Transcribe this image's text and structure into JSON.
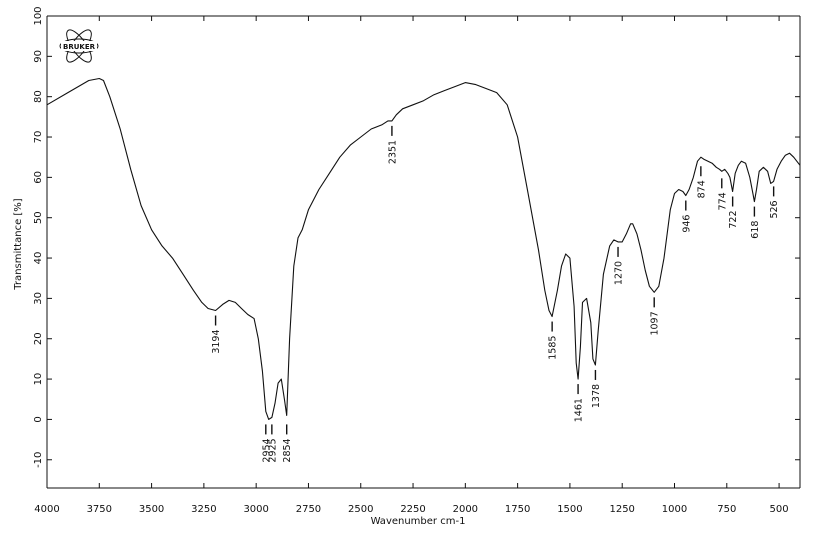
{
  "chart_data": {
    "type": "line",
    "xlabel": "Wavenumber cm-1",
    "ylabel": "Transmittance [%]",
    "xlim": [
      4000,
      400
    ],
    "ylim": [
      -17,
      100
    ],
    "x_reversed": true,
    "grid": false,
    "logo": "BRUKER",
    "x_ticks": [
      {
        "value": 4000,
        "label": "4000"
      },
      {
        "value": 3750,
        "label": "3750"
      },
      {
        "value": 3500,
        "label": "3500"
      },
      {
        "value": 3250,
        "label": "3250"
      },
      {
        "value": 3000,
        "label": "3000"
      },
      {
        "value": 2750,
        "label": "2750"
      },
      {
        "value": 2500,
        "label": "2500"
      },
      {
        "value": 2250,
        "label": "2250"
      },
      {
        "value": 2000,
        "label": "2000"
      },
      {
        "value": 1750,
        "label": "1750"
      },
      {
        "value": 1500,
        "label": "1500"
      },
      {
        "value": 1250,
        "label": "1250"
      },
      {
        "value": 1000,
        "label": "1000"
      },
      {
        "value": 750,
        "label": "750"
      },
      {
        "value": 500,
        "label": "500"
      }
    ],
    "y_ticks": [
      {
        "value": 100,
        "label": "100"
      },
      {
        "value": 90,
        "label": "90"
      },
      {
        "value": 80,
        "label": "80"
      },
      {
        "value": 70,
        "label": "70"
      },
      {
        "value": 60,
        "label": "60"
      },
      {
        "value": 50,
        "label": "50"
      },
      {
        "value": 40,
        "label": "40"
      },
      {
        "value": 30,
        "label": "30"
      },
      {
        "value": 20,
        "label": "20"
      },
      {
        "value": 10,
        "label": "10"
      },
      {
        "value": 0,
        "label": "0"
      },
      {
        "value": -10,
        "label": "-10"
      }
    ],
    "series": [
      {
        "x": [
          4000,
          3900,
          3800,
          3750,
          3730,
          3700,
          3650,
          3600,
          3550,
          3500,
          3450,
          3400,
          3350,
          3300,
          3260,
          3230,
          3194,
          3160,
          3130,
          3100,
          3070,
          3040,
          3010,
          2990,
          2970,
          2954,
          2940,
          2925,
          2910,
          2895,
          2880,
          2865,
          2854,
          2840,
          2820,
          2800,
          2780,
          2750,
          2700,
          2650,
          2600,
          2550,
          2500,
          2450,
          2400,
          2370,
          2351,
          2330,
          2300,
          2250,
          2200,
          2150,
          2100,
          2050,
          2000,
          1950,
          1900,
          1850,
          1800,
          1750,
          1700,
          1650,
          1620,
          1600,
          1585,
          1560,
          1540,
          1520,
          1500,
          1480,
          1470,
          1461,
          1450,
          1440,
          1420,
          1400,
          1390,
          1378,
          1365,
          1340,
          1310,
          1290,
          1270,
          1250,
          1230,
          1210,
          1200,
          1180,
          1160,
          1140,
          1120,
          1097,
          1075,
          1050,
          1020,
          1000,
          980,
          960,
          946,
          930,
          910,
          890,
          874,
          860,
          840,
          820,
          800,
          785,
          774,
          760,
          745,
          735,
          722,
          710,
          695,
          680,
          660,
          640,
          625,
          618,
          608,
          595,
          575,
          555,
          540,
          526,
          510,
          490,
          470,
          450,
          430,
          400
        ],
        "y": [
          78,
          81,
          84,
          84.5,
          84,
          80,
          72,
          62,
          53,
          47,
          43,
          40,
          36,
          32,
          29,
          27.5,
          27,
          28.5,
          29.5,
          29,
          27.5,
          26,
          25,
          20,
          12,
          2,
          0,
          0.5,
          4,
          9,
          10,
          5,
          1,
          20,
          38,
          45,
          47,
          52,
          57,
          61,
          65,
          68,
          70,
          72,
          73,
          74,
          74,
          75.5,
          77,
          78,
          79,
          80.5,
          81.5,
          82.5,
          83.5,
          83,
          82,
          81,
          78,
          70,
          56,
          42,
          32,
          27,
          25.5,
          32,
          38,
          41,
          40,
          28,
          14,
          10,
          18,
          29,
          30,
          24,
          15,
          13.5,
          22,
          36,
          43,
          44.5,
          44,
          44,
          46,
          48.5,
          48.5,
          46,
          42,
          37,
          33,
          31.5,
          33,
          40,
          52,
          56,
          57,
          56.5,
          55.5,
          57,
          60,
          64,
          65,
          64.5,
          64,
          63.5,
          62.5,
          62,
          61.5,
          62,
          61,
          60,
          56.5,
          61,
          63,
          64,
          63.5,
          60,
          56,
          54,
          57,
          61.5,
          62.5,
          61.5,
          58.5,
          59,
          62,
          64,
          65.5,
          66,
          65,
          63
        ]
      }
    ],
    "annotations": [
      {
        "x": 3194,
        "y": 27,
        "label": "3194"
      },
      {
        "x": 2954,
        "y": 0,
        "label": "2954"
      },
      {
        "x": 2925,
        "y": 0,
        "label": "2925"
      },
      {
        "x": 2854,
        "y": 0,
        "label": "2854"
      },
      {
        "x": 2351,
        "y": 74,
        "label": "2351"
      },
      {
        "x": 1585,
        "y": 25.5,
        "label": "1585"
      },
      {
        "x": 1461,
        "y": 10,
        "label": "1461"
      },
      {
        "x": 1378,
        "y": 13.5,
        "label": "1378"
      },
      {
        "x": 1270,
        "y": 44,
        "label": "1270"
      },
      {
        "x": 1097,
        "y": 31.5,
        "label": "1097"
      },
      {
        "x": 946,
        "y": 55.5,
        "label": "946"
      },
      {
        "x": 874,
        "y": 64,
        "label": "874"
      },
      {
        "x": 774,
        "y": 61,
        "label": "774"
      },
      {
        "x": 722,
        "y": 56.5,
        "label": "722"
      },
      {
        "x": 618,
        "y": 54,
        "label": "618"
      },
      {
        "x": 526,
        "y": 59,
        "label": "526"
      }
    ]
  }
}
